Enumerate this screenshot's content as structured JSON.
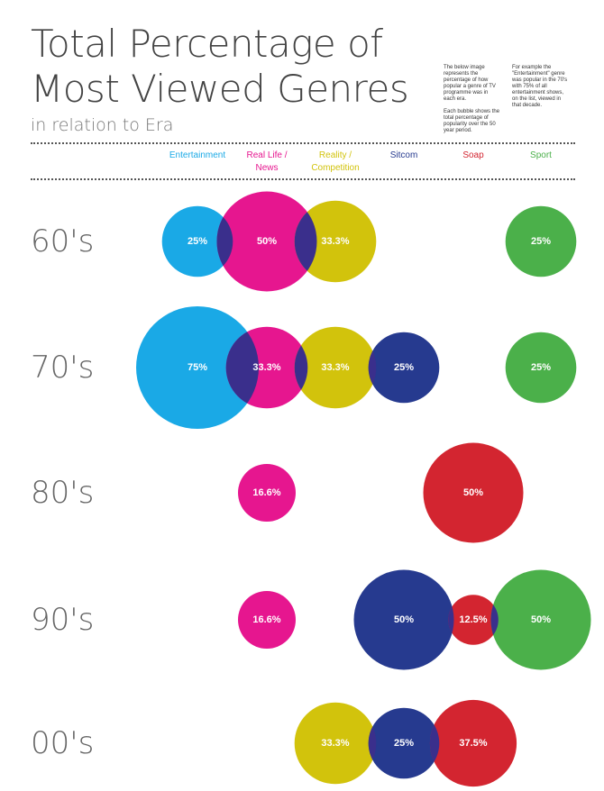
{
  "header": {
    "title_line1": "Total Percentage of",
    "title_line2": "Most Viewed Genres",
    "subtitle": "in relation to Era"
  },
  "notes": {
    "left_p1": "The below image represents the percentage of how popular a genre of TV programme was in each era.",
    "left_p2": "Each bubble shows the total percentage of popularity over the 50 year period.",
    "right_p1": "For example the \"Entertainment\" genre was popular in the 70's with 75% of all entertainment shows, on the list, viewed in that decade."
  },
  "colors": {
    "Entertainment": "#1aa9e6",
    "Real Life / News": "#e6168f",
    "Reality / Competition": "#d2c30c",
    "Sitcom": "#263a8f",
    "Soap": "#d32530",
    "Sport": "#4bb04a",
    "overlap": "#3a2f8c"
  },
  "chart_data": {
    "type": "bubble",
    "title": "Total Percentage of Most Viewed Genres",
    "subtitle": "in relation to Era",
    "categories": [
      "Entertainment",
      "Real Life /\nNews",
      "Reality /\nCompetition",
      "Sitcom",
      "Soap",
      "Sport"
    ],
    "series_keys": [
      "Entertainment",
      "Real Life / News",
      "Reality / Competition",
      "Sitcom",
      "Soap",
      "Sport"
    ],
    "eras": [
      "60's",
      "70's",
      "80's",
      "90's",
      "00's"
    ],
    "values": [
      {
        "era": "60's",
        "Entertainment": 25,
        "Real Life / News": 50,
        "Reality / Competition": 33.3,
        "Sitcom": null,
        "Soap": null,
        "Sport": 25
      },
      {
        "era": "70's",
        "Entertainment": 75,
        "Real Life / News": 33.3,
        "Reality / Competition": 33.3,
        "Sitcom": 25,
        "Soap": null,
        "Sport": 25
      },
      {
        "era": "80's",
        "Entertainment": null,
        "Real Life / News": 16.6,
        "Reality / Competition": null,
        "Sitcom": null,
        "Soap": 50,
        "Sport": null
      },
      {
        "era": "90's",
        "Entertainment": null,
        "Real Life / News": 16.6,
        "Reality / Competition": null,
        "Sitcom": 50,
        "Soap": 12.5,
        "Sport": 50
      },
      {
        "era": "00's",
        "Entertainment": null,
        "Real Life / News": null,
        "Reality / Competition": 33.3,
        "Sitcom": 25,
        "Soap": 37.5,
        "Sport": null
      }
    ],
    "labels": [
      {
        "era": "60's",
        "Entertainment": "25%",
        "Real Life / News": "50%",
        "Reality / Competition": "33.3%",
        "Sport": "25%"
      },
      {
        "era": "70's",
        "Entertainment": "75%",
        "Real Life / News": "33.3%",
        "Reality / Competition": "33.3%",
        "Sitcom": "25%",
        "Sport": "25%"
      },
      {
        "era": "80's",
        "Real Life / News": "16.6%",
        "Soap": "50%"
      },
      {
        "era": "90's",
        "Real Life / News": "16.6%",
        "Sitcom": "50%",
        "Soap": "12.5%",
        "Sport": "50%"
      },
      {
        "era": "00's",
        "Reality / Competition": "33.3%",
        "Sitcom": "25%",
        "Soap": "37.5%"
      }
    ]
  }
}
